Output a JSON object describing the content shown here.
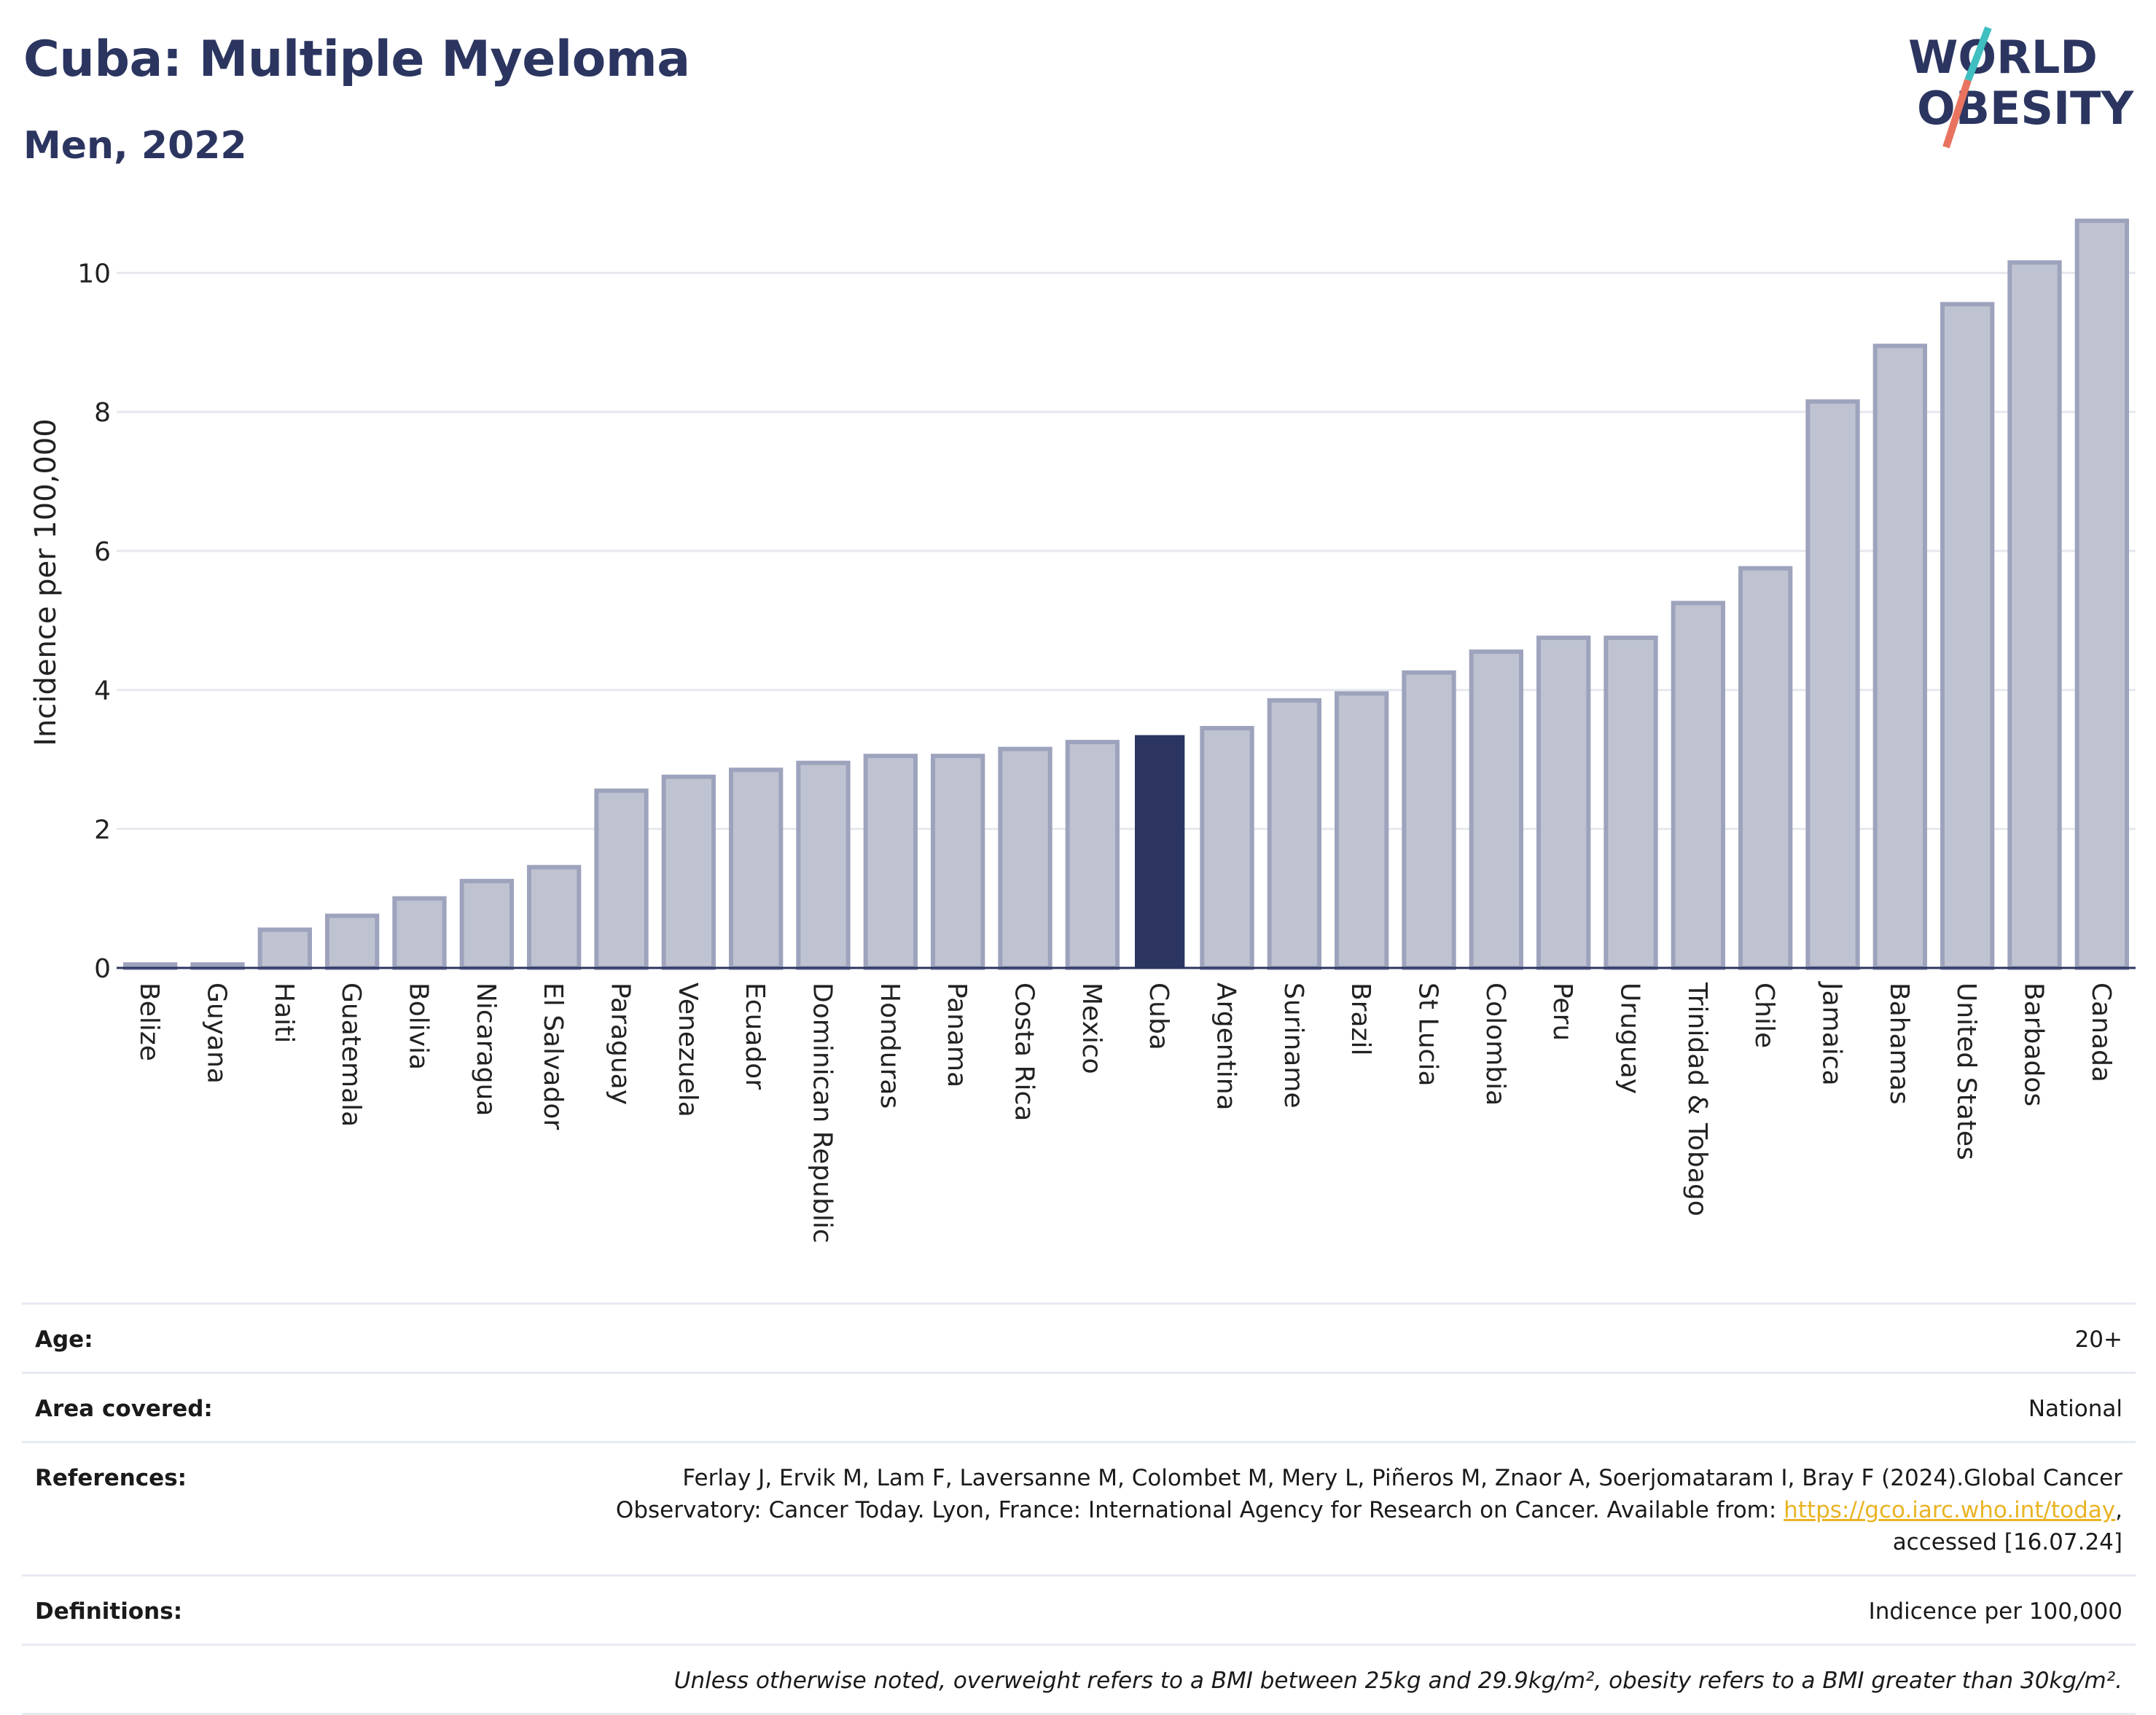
{
  "header": {
    "title": "Cuba: Multiple Myeloma",
    "subtitle": "Men, 2022"
  },
  "logo": {
    "line1": "WORLD",
    "line2": "OBESITY"
  },
  "colors": {
    "highlight": "#2b3560",
    "bar_fill": "#bfc3d1",
    "bar_stroke": "#9ea3bd",
    "title": "#2b3560",
    "link": "#e9b323",
    "logo_teal": "#3fbfbf",
    "logo_coral": "#e8735f"
  },
  "chart_data": {
    "type": "bar",
    "title": "Cuba: Multiple Myeloma",
    "subtitle": "Men, 2022",
    "xlabel": "",
    "ylabel": "Incidence per 100,000",
    "ylim": [
      0,
      11.2
    ],
    "yticks": [
      0,
      2,
      4,
      6,
      8,
      10
    ],
    "grid": true,
    "highlight_category": "Cuba",
    "categories": [
      "Belize",
      "Guyana",
      "Haiti",
      "Guatemala",
      "Bolivia",
      "Nicaragua",
      "El Salvador",
      "Paraguay",
      "Venezuela",
      "Ecuador",
      "Dominican Republic",
      "Honduras",
      "Panama",
      "Costa Rica",
      "Mexico",
      "Cuba",
      "Argentina",
      "Suriname",
      "Brazil",
      "St Lucia",
      "Colombia",
      "Peru",
      "Uruguay",
      "Trinidad & Tobago",
      "Chile",
      "Jamaica",
      "Bahamas",
      "United States",
      "Barbados",
      "Canada"
    ],
    "values": [
      0.05,
      0.05,
      0.55,
      0.75,
      1.0,
      1.25,
      1.45,
      2.55,
      2.75,
      2.85,
      2.95,
      3.05,
      3.05,
      3.15,
      3.25,
      3.35,
      3.45,
      3.85,
      3.95,
      4.25,
      4.55,
      4.75,
      4.75,
      5.25,
      5.75,
      8.15,
      8.95,
      9.55,
      10.15,
      10.75
    ]
  },
  "meta": {
    "age_label": "Age:",
    "age_value": "20+",
    "area_label": "Area covered:",
    "area_value": "National",
    "references_label": "References:",
    "references_text_1": "Ferlay J, Ervik M, Lam F, Laversanne M, Colombet M, Mery L, Piñeros M, Znaor A, Soerjomataram I, Bray F (2024).Global Cancer",
    "references_text_2": "Observatory: Cancer Today. Lyon, France: International Agency for Research on Cancer. Available from: ",
    "references_link": "https://gco.iarc.who.int/today",
    "references_text_3": ",",
    "references_text_4": "accessed [16.07.24]",
    "definitions_label": "Definitions:",
    "definitions_value": "Indicence per 100,000",
    "note": "Unless otherwise noted, overweight refers to a BMI between 25kg and 29.9kg/m², obesity refers to a BMI greater than 30kg/m²."
  }
}
